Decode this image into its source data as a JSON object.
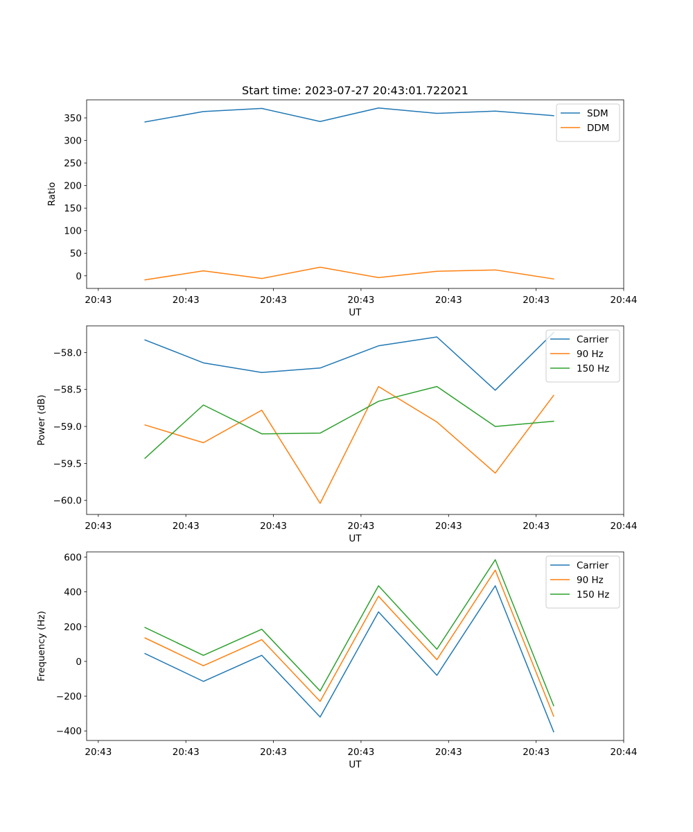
{
  "figure": {
    "title": "Start time: 2023-07-27 20:43:01.722021"
  },
  "chart_data": [
    {
      "type": "line",
      "title": "Start time: 2023-07-27 20:43:01.722021",
      "xlabel": "UT",
      "ylabel": "Ratio",
      "x": [
        1,
        2,
        3,
        4,
        5,
        6,
        7,
        8
      ],
      "xlim": [
        0,
        9.2
      ],
      "xticks": [
        0.2,
        1.7,
        3.2,
        4.7,
        6.2,
        7.7,
        9.2
      ],
      "xtick_labels": [
        "20:43",
        "20:43",
        "20:43",
        "20:43",
        "20:43",
        "20:43",
        "20:44"
      ],
      "ylim": [
        -28,
        390
      ],
      "yticks": [
        0,
        50,
        100,
        150,
        200,
        250,
        300,
        350
      ],
      "ytick_labels": [
        "0",
        "50",
        "100",
        "150",
        "200",
        "250",
        "300",
        "350"
      ],
      "legend_position": "upper-right",
      "series": [
        {
          "name": "SDM",
          "color": "#1f77b4",
          "values": [
            341,
            364,
            371,
            342,
            372,
            360,
            365,
            355
          ]
        },
        {
          "name": "DDM",
          "color": "#ff7f0e",
          "values": [
            -9,
            11,
            -6,
            19,
            -4,
            10,
            13,
            -7
          ]
        }
      ]
    },
    {
      "type": "line",
      "title": "",
      "xlabel": "UT",
      "ylabel": "Power (dB)",
      "x": [
        1,
        2,
        3,
        4,
        5,
        6,
        7,
        8
      ],
      "xlim": [
        0,
        9.2
      ],
      "xticks": [
        0.2,
        1.7,
        3.2,
        4.7,
        6.2,
        7.7,
        9.2
      ],
      "xtick_labels": [
        "20:43",
        "20:43",
        "20:43",
        "20:43",
        "20:43",
        "20:43",
        "20:44"
      ],
      "ylim": [
        -60.19,
        -57.64
      ],
      "yticks": [
        -58.0,
        -58.5,
        -59.0,
        -59.5,
        -60.0
      ],
      "ytick_labels": [
        "−58.0",
        "−58.5",
        "−59.0",
        "−59.5",
        "−60.0"
      ],
      "legend_position": "upper-right",
      "series": [
        {
          "name": "Carrier",
          "color": "#1f77b4",
          "values": [
            -57.83,
            -58.14,
            -58.27,
            -58.21,
            -57.91,
            -57.79,
            -58.51,
            -57.73
          ]
        },
        {
          "name": "90 Hz",
          "color": "#ff7f0e",
          "values": [
            -58.98,
            -59.22,
            -58.78,
            -60.04,
            -58.46,
            -58.94,
            -59.63,
            -58.58
          ]
        },
        {
          "name": "150 Hz",
          "color": "#2ca02c",
          "values": [
            -59.43,
            -58.71,
            -59.1,
            -59.09,
            -58.66,
            -58.46,
            -59.0,
            -58.93
          ]
        }
      ]
    },
    {
      "type": "line",
      "title": "",
      "xlabel": "UT",
      "ylabel": "Frequency (Hz)",
      "x": [
        1,
        2,
        3,
        4,
        5,
        6,
        7,
        8
      ],
      "xlim": [
        0,
        9.2
      ],
      "xticks": [
        0.2,
        1.7,
        3.2,
        4.7,
        6.2,
        7.7,
        9.2
      ],
      "xtick_labels": [
        "20:43",
        "20:43",
        "20:43",
        "20:43",
        "20:43",
        "20:43",
        "20:44"
      ],
      "ylim": [
        -455,
        630
      ],
      "yticks": [
        600,
        400,
        200,
        0,
        -200,
        -400
      ],
      "ytick_labels": [
        "600",
        "400",
        "200",
        "0",
        "−200",
        "−400"
      ],
      "legend_position": "upper-right",
      "series": [
        {
          "name": "Carrier",
          "color": "#1f77b4",
          "values": [
            45,
            -115,
            35,
            -320,
            285,
            -80,
            435,
            -405
          ]
        },
        {
          "name": "90 Hz",
          "color": "#ff7f0e",
          "values": [
            135,
            -25,
            125,
            -230,
            375,
            10,
            525,
            -315
          ]
        },
        {
          "name": "150 Hz",
          "color": "#2ca02c",
          "values": [
            195,
            35,
            185,
            -170,
            435,
            70,
            585,
            -255
          ]
        }
      ]
    }
  ]
}
